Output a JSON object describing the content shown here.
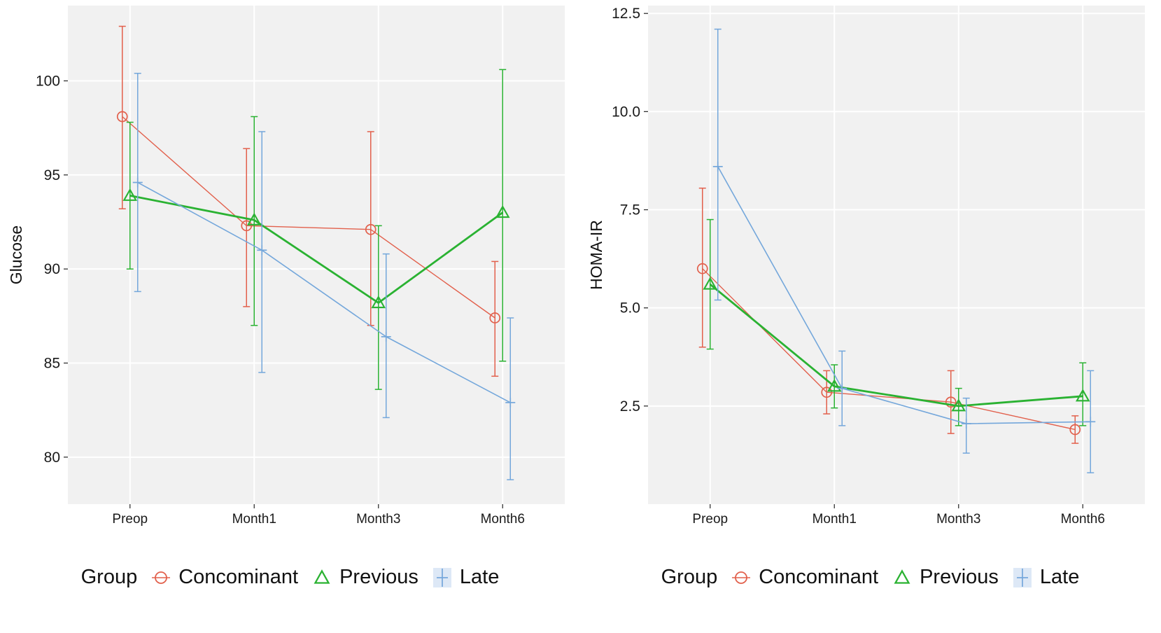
{
  "figure": {
    "background": "#ffffff",
    "panel_color": "#f1f1f1",
    "grid_color": "#ffffff",
    "text_color": "#1a1a1a",
    "dodge": [
      -11,
      0,
      11
    ]
  },
  "chart_data": [
    {
      "type": "line",
      "title": "",
      "xlabel": "",
      "ylabel": "Glucose",
      "categories": [
        "Preop",
        "Month1",
        "Month3",
        "Month6"
      ],
      "yticks": [
        80,
        85,
        90,
        95,
        100
      ],
      "ytick_decimals": 0,
      "ylim": [
        77.5,
        104.0
      ],
      "grid": true,
      "legend": {
        "title": "Group",
        "position": "bottom"
      },
      "series": [
        {
          "name": "Concominant",
          "marker": "circle",
          "color": "#e2604c",
          "linewidth": 1.4,
          "values": [
            98.1,
            92.3,
            92.1,
            87.4
          ],
          "lower": [
            93.2,
            88.0,
            87.0,
            84.3
          ],
          "upper": [
            102.9,
            96.4,
            97.3,
            90.4
          ]
        },
        {
          "name": "Previous",
          "marker": "triangle",
          "color": "#2ab232",
          "linewidth": 2.8,
          "values": [
            93.9,
            92.6,
            88.2,
            93.0
          ],
          "lower": [
            90.0,
            87.0,
            83.6,
            85.1
          ],
          "upper": [
            97.8,
            98.1,
            92.3,
            100.6
          ]
        },
        {
          "name": "Late",
          "marker": "plus",
          "color": "#74a7db",
          "linewidth": 1.6,
          "values": [
            94.6,
            91.0,
            86.4,
            82.9
          ],
          "lower": [
            88.8,
            84.5,
            82.1,
            78.8
          ],
          "upper": [
            100.4,
            97.3,
            90.8,
            87.4
          ]
        }
      ]
    },
    {
      "type": "line",
      "title": "",
      "xlabel": "",
      "ylabel": "HOMA-IR",
      "categories": [
        "Preop",
        "Month1",
        "Month3",
        "Month6"
      ],
      "yticks": [
        2.5,
        5.0,
        7.5,
        10.0,
        12.5
      ],
      "ytick_decimals": 1,
      "ylim": [
        0.0,
        12.7
      ],
      "grid": true,
      "legend": {
        "title": "Group",
        "position": "bottom"
      },
      "series": [
        {
          "name": "Concominant",
          "marker": "circle",
          "color": "#e2604c",
          "linewidth": 1.4,
          "values": [
            6.0,
            2.85,
            2.6,
            1.9
          ],
          "lower": [
            4.0,
            2.3,
            1.8,
            1.55
          ],
          "upper": [
            8.05,
            3.4,
            3.4,
            2.25
          ]
        },
        {
          "name": "Previous",
          "marker": "triangle",
          "color": "#2ab232",
          "linewidth": 2.8,
          "values": [
            5.6,
            3.0,
            2.5,
            2.75
          ],
          "lower": [
            3.95,
            2.45,
            2.0,
            2.0
          ],
          "upper": [
            7.25,
            3.55,
            2.95,
            3.6
          ]
        },
        {
          "name": "Late",
          "marker": "plus",
          "color": "#74a7db",
          "linewidth": 1.6,
          "values": [
            8.6,
            2.95,
            2.05,
            2.1
          ],
          "lower": [
            5.2,
            2.0,
            1.3,
            0.8
          ],
          "upper": [
            12.1,
            3.9,
            2.7,
            3.4
          ]
        }
      ]
    }
  ]
}
